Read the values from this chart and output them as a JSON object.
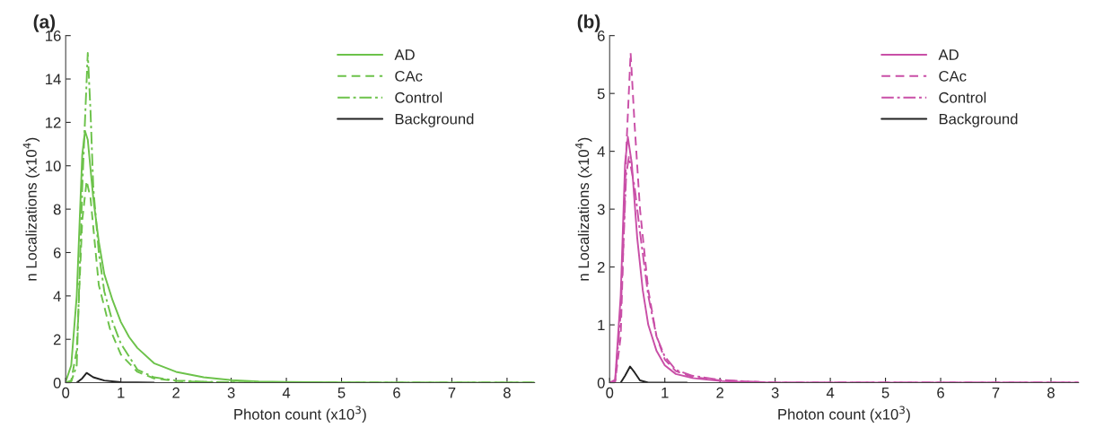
{
  "chart_data": [
    {
      "type": "line",
      "title": "(a)",
      "xlabel": "Photon count (x10$^{3}$)",
      "ylabel": "n Localizations (x10$^{4}$)",
      "xlim": [
        0,
        8.5
      ],
      "xticks": [
        0,
        1,
        2,
        3,
        4,
        5,
        6,
        7,
        8
      ],
      "ylim": [
        0,
        16
      ],
      "yticks": [
        0,
        2,
        4,
        6,
        8,
        10,
        12,
        14,
        16
      ],
      "grid": false,
      "legend": "top right",
      "series": [
        {
          "name": "AD",
          "color": "#6cc24a",
          "line_style": "solid",
          "x": [
            0,
            0.1,
            0.2,
            0.3,
            0.35,
            0.4,
            0.5,
            0.6,
            0.7,
            0.85,
            1.0,
            1.15,
            1.3,
            1.6,
            2.0,
            2.5,
            3.0,
            3.5,
            4.0,
            5.0,
            6.0,
            7.0,
            8.5
          ],
          "values": [
            0.05,
            0.8,
            4.0,
            10.5,
            11.6,
            11.2,
            8.5,
            6.5,
            5.0,
            3.8,
            2.8,
            2.1,
            1.6,
            0.9,
            0.5,
            0.25,
            0.12,
            0.06,
            0.03,
            0.01,
            0,
            0,
            0
          ]
        },
        {
          "name": "CAc",
          "color": "#6cc24a",
          "line_style": "dashed",
          "x": [
            0,
            0.1,
            0.2,
            0.3,
            0.38,
            0.45,
            0.6,
            0.8,
            1.0,
            1.3,
            1.6,
            2.0,
            2.5,
            3.0,
            4.0,
            8.5
          ],
          "values": [
            0,
            0.1,
            1.5,
            7.5,
            9.3,
            8.5,
            4.5,
            2.5,
            1.3,
            0.5,
            0.2,
            0.08,
            0.03,
            0.01,
            0,
            0
          ]
        },
        {
          "name": "Control",
          "color": "#6cc24a",
          "line_style": "dashdot",
          "x": [
            0,
            0.1,
            0.2,
            0.3,
            0.4,
            0.45,
            0.5,
            0.6,
            0.7,
            0.85,
            1.0,
            1.3,
            1.6,
            2.0,
            2.5,
            3.0,
            4.0,
            8.5
          ],
          "values": [
            0,
            0.05,
            0.8,
            9.0,
            15.2,
            12.5,
            9.0,
            6.0,
            4.2,
            2.8,
            1.8,
            0.6,
            0.25,
            0.1,
            0.05,
            0.02,
            0,
            0
          ]
        },
        {
          "name": "Background",
          "color": "#222222",
          "line_style": "solid",
          "x": [
            0.2,
            0.3,
            0.38,
            0.5,
            0.7,
            1.0,
            1.6
          ],
          "values": [
            0,
            0.2,
            0.45,
            0.25,
            0.1,
            0.02,
            0
          ]
        }
      ]
    },
    {
      "type": "line",
      "title": "(b)",
      "xlabel": "Photon count (x10$^{3}$)",
      "ylabel": "n Localizations (x10$^{4}$)",
      "xlim": [
        0,
        8.5
      ],
      "xticks": [
        0,
        1,
        2,
        3,
        4,
        5,
        6,
        7,
        8
      ],
      "ylim": [
        0,
        6
      ],
      "yticks": [
        0,
        1,
        2,
        3,
        4,
        5,
        6
      ],
      "grid": false,
      "legend": "top right",
      "series": [
        {
          "name": "AD",
          "color": "#c94fa7",
          "line_style": "solid",
          "x": [
            0,
            0.1,
            0.2,
            0.28,
            0.33,
            0.4,
            0.5,
            0.6,
            0.7,
            0.85,
            1.0,
            1.2,
            1.5,
            2.0,
            2.5,
            3.0,
            8.5
          ],
          "values": [
            0,
            0.05,
            1.5,
            3.8,
            4.25,
            3.8,
            2.5,
            1.6,
            1.0,
            0.55,
            0.3,
            0.15,
            0.08,
            0.03,
            0.01,
            0,
            0
          ]
        },
        {
          "name": "CAc",
          "color": "#c94fa7",
          "line_style": "dashed",
          "x": [
            0,
            0.1,
            0.2,
            0.3,
            0.38,
            0.45,
            0.55,
            0.7,
            0.85,
            1.0,
            1.2,
            1.5,
            2.0,
            2.5,
            3.0,
            8.5
          ],
          "values": [
            0,
            0.02,
            0.8,
            4.0,
            5.7,
            4.5,
            3.0,
            1.6,
            0.8,
            0.4,
            0.2,
            0.1,
            0.04,
            0.02,
            0,
            0
          ]
        },
        {
          "name": "Control",
          "color": "#c94fa7",
          "line_style": "dashdot",
          "x": [
            0,
            0.1,
            0.2,
            0.3,
            0.35,
            0.45,
            0.55,
            0.7,
            0.85,
            1.0,
            1.2,
            1.5,
            2.0,
            2.5,
            3.0,
            8.5
          ],
          "values": [
            0,
            0.03,
            1.2,
            3.6,
            3.9,
            3.4,
            2.6,
            1.5,
            0.8,
            0.45,
            0.22,
            0.12,
            0.05,
            0.02,
            0,
            0
          ]
        },
        {
          "name": "Background",
          "color": "#222222",
          "line_style": "solid",
          "x": [
            0.2,
            0.28,
            0.37,
            0.45,
            0.55,
            0.7,
            1.0,
            1.4
          ],
          "values": [
            0,
            0.12,
            0.28,
            0.18,
            0.04,
            0,
            0,
            0
          ]
        }
      ]
    }
  ]
}
